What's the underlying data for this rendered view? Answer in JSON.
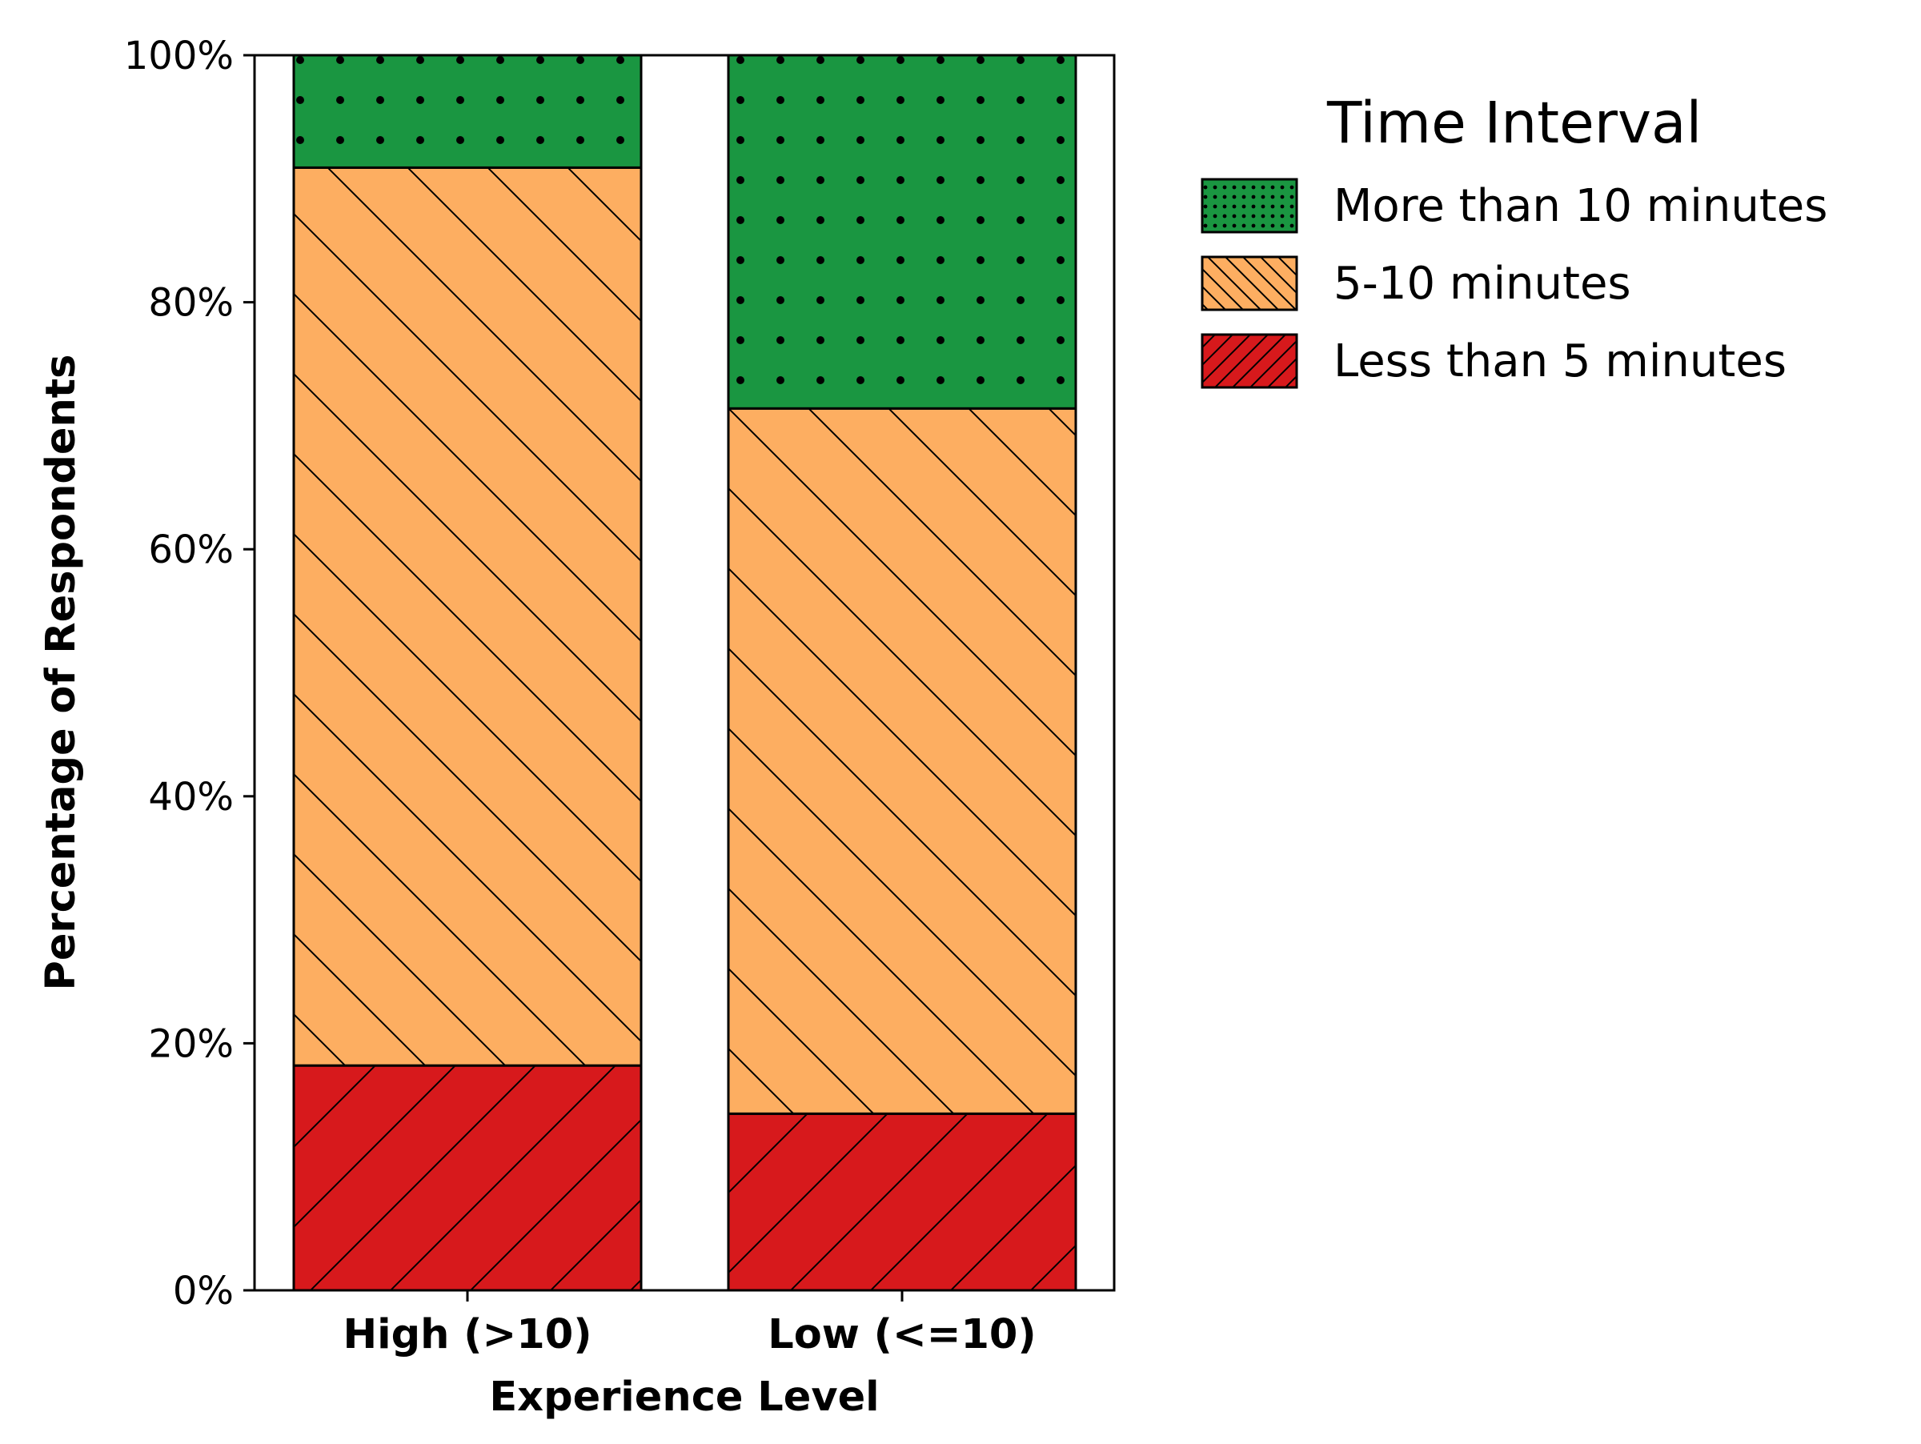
{
  "chart_data": {
    "type": "bar",
    "stacked": true,
    "title": "",
    "xlabel": "Experience Level",
    "ylabel": "Percentage of Respondents",
    "categories": [
      "High (>10)",
      "Low (<=10)"
    ],
    "ylim": [
      0,
      100
    ],
    "yticks": [
      0,
      20,
      40,
      60,
      80,
      100
    ],
    "ytick_labels": [
      "0%",
      "20%",
      "40%",
      "60%",
      "80%",
      "100%"
    ],
    "series": [
      {
        "name": "Less than 5 minutes",
        "values": [
          18.2,
          14.3
        ],
        "color": "#d7191c",
        "hatch": "diagonal-forward"
      },
      {
        "name": "5-10 minutes",
        "values": [
          72.7,
          57.1
        ],
        "color": "#fdae61",
        "hatch": "diagonal-back"
      },
      {
        "name": "More than 10 minutes",
        "values": [
          9.1,
          28.6
        ],
        "color": "#1a9641",
        "hatch": "dots"
      }
    ],
    "legend": {
      "title": "Time Interval",
      "placement": "outside-right-top",
      "order": [
        "More than 10 minutes",
        "5-10 minutes",
        "Less than 5 minutes"
      ]
    },
    "grid": false
  }
}
